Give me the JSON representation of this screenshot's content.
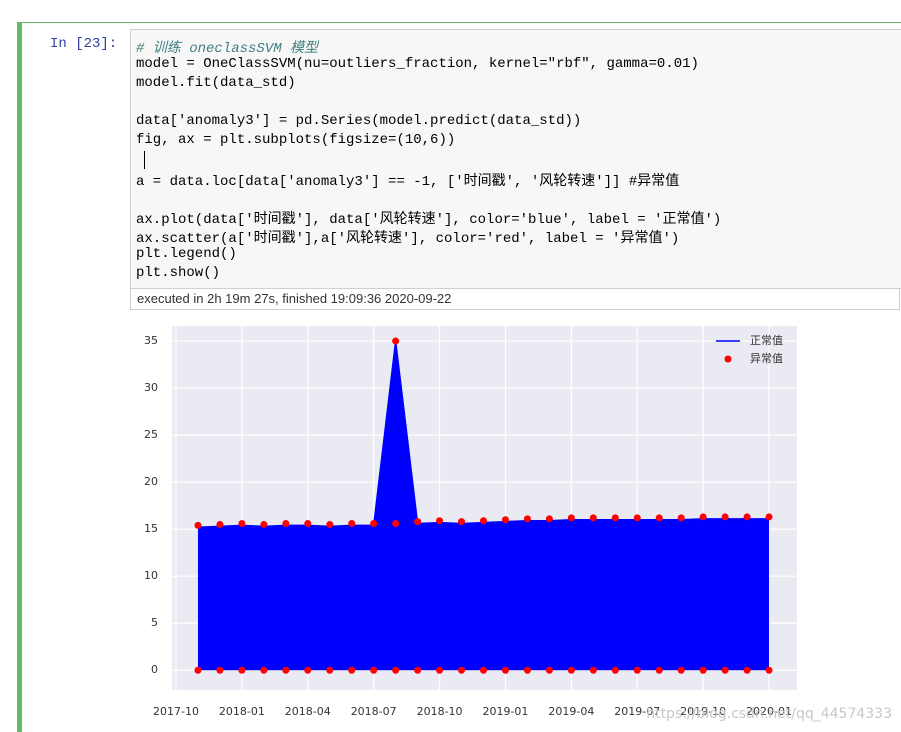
{
  "cell": {
    "prompt": "In [23]:",
    "code": [
      "# 训练 oneclassSVM 模型",
      "model = OneClassSVM(nu=outliers_fraction, kernel=\"rbf\", gamma=0.01)",
      "model.fit(data_std)",
      null,
      "data['anomaly3'] = pd.Series(model.predict(data_std))",
      "fig, ax = plt.subplots(figsize=(10,6))",
      null,
      "a = data.loc[data['anomaly3'] == -1, ['时间戳', '风轮转速']] #异常值",
      null,
      "ax.plot(data['时间戳'], data['风轮转速'], color='blue', label = '正常值')",
      "ax.scatter(a['时间戳'],a['风轮转速'], color='red', label = '异常值')",
      "plt.legend()",
      "plt.show()"
    ],
    "execution": "executed in 2h 19m 27s, finished 19:09:36 2020-09-22"
  },
  "watermark": "https://blog.csdn.net/qq_44574333",
  "chart_data": {
    "type": "line",
    "xlim": [
      "2017-10",
      "2020-02"
    ],
    "xticks": [
      "2017-10",
      "2018-01",
      "2018-04",
      "2018-07",
      "2018-10",
      "2019-01",
      "2019-04",
      "2019-07",
      "2019-10",
      "2020-01"
    ],
    "ylim": [
      -2.1,
      36.6
    ],
    "yticks": [
      0,
      5,
      10,
      15,
      20,
      25,
      30,
      35
    ],
    "grid": true,
    "legend": "upper right",
    "series": [
      {
        "name": "正常值",
        "color": "blue",
        "type": "line",
        "x": [
          "2017-11",
          "2017-12",
          "2018-01",
          "2018-02",
          "2018-03",
          "2018-04",
          "2018-05",
          "2018-06",
          "2018-07",
          "2018-08",
          "2018-09",
          "2018-10",
          "2018-11",
          "2018-12",
          "2019-01",
          "2019-02",
          "2019-03",
          "2019-04",
          "2019-05",
          "2019-06",
          "2019-07",
          "2019-08",
          "2019-09",
          "2019-10",
          "2019-11",
          "2019-12",
          "2020-01"
        ],
        "values": [
          15.2,
          15.3,
          15.4,
          15.3,
          15.4,
          15.4,
          15.3,
          15.4,
          15.4,
          35,
          15.6,
          15.7,
          15.6,
          15.7,
          15.8,
          15.9,
          15.9,
          16,
          16,
          16,
          16,
          16,
          16,
          16.1,
          16.1,
          16.1,
          16.1
        ]
      },
      {
        "name": "异常值",
        "color": "red",
        "type": "scatter",
        "x": [
          "2017-11",
          "2017-12",
          "2018-01",
          "2018-02",
          "2018-03",
          "2018-04",
          "2018-05",
          "2018-06",
          "2018-07",
          "2018-08",
          "2018-09",
          "2018-10",
          "2018-11",
          "2018-12",
          "2019-01",
          "2019-02",
          "2019-03",
          "2019-04",
          "2019-05",
          "2019-06",
          "2019-07",
          "2019-08",
          "2019-09",
          "2019-10",
          "2019-11",
          "2019-12",
          "2020-01",
          "2017-11",
          "2017-12",
          "2018-01",
          "2018-02",
          "2018-03",
          "2018-04",
          "2018-05",
          "2018-06",
          "2018-07",
          "2018-08",
          "2018-09",
          "2018-10",
          "2018-11",
          "2018-12",
          "2019-01",
          "2019-02",
          "2019-03",
          "2019-04",
          "2019-05",
          "2019-06",
          "2019-07",
          "2019-08",
          "2019-09",
          "2019-10",
          "2019-11",
          "2019-12",
          "2020-01",
          "2018-08"
        ],
        "values": [
          15.4,
          15.5,
          15.6,
          15.5,
          15.6,
          15.6,
          15.5,
          15.6,
          15.6,
          15.6,
          15.8,
          15.9,
          15.8,
          15.9,
          16,
          16.1,
          16.1,
          16.2,
          16.2,
          16.2,
          16.2,
          16.2,
          16.2,
          16.3,
          16.3,
          16.3,
          16.3,
          0,
          0,
          0,
          0,
          0,
          0,
          0,
          0,
          0,
          0,
          0,
          0,
          0,
          0,
          0,
          0,
          0,
          0,
          0,
          0,
          0,
          0,
          0,
          0,
          0,
          0,
          0,
          35
        ]
      }
    ]
  }
}
